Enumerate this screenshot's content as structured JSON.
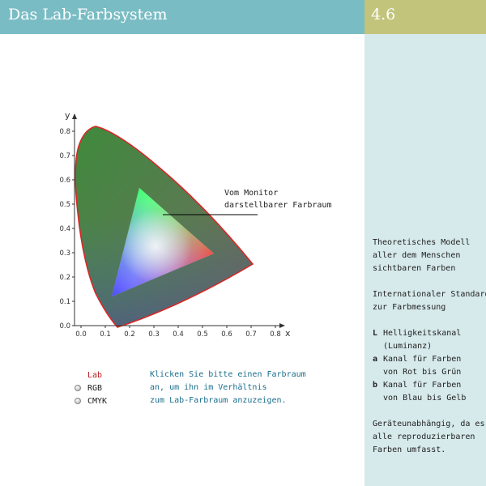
{
  "header": {
    "title": "Das Lab-Farbsystem",
    "page_number": "4.6"
  },
  "colors": {
    "title_bar": "#79bcc4",
    "page_number_bar": "#c2c47b",
    "sidebar": "#d6e9eb",
    "gamut_outline": "#d82828",
    "instruction_text": "#1c6f8c"
  },
  "sidebar": {
    "model_lines": [
      "Theoretisches Modell",
      "aller dem Menschen",
      "sichtbaren Farben"
    ],
    "standard_lines": [
      "Internationaler Standard",
      "zur Farbmessung"
    ],
    "definitions": [
      {
        "key": "L",
        "lines": [
          "Helligkeitskanal",
          "(Luminanz)"
        ]
      },
      {
        "key": "a",
        "lines": [
          "Kanal für Farben",
          "von Rot bis Grün"
        ]
      },
      {
        "key": "b",
        "lines": [
          "Kanal für Farben",
          "von Blau bis Gelb"
        ]
      }
    ],
    "device_lines": [
      "Geräteunabhängig, da es",
      "alle reproduzierbaren",
      "Farben umfasst."
    ]
  },
  "diagram": {
    "annotation_lines": [
      "Vom Monitor",
      "darstellbarer Farbraum"
    ],
    "x_axis_label": "x",
    "y_axis_label": "y",
    "x_ticks": [
      "0.0",
      "0.1",
      "0.2",
      "0.3",
      "0.4",
      "0.5",
      "0.6",
      "0.7",
      "0.8"
    ],
    "y_ticks": [
      "0.0",
      "0.1",
      "0.2",
      "0.3",
      "0.4",
      "0.5",
      "0.6",
      "0.7",
      "0.8"
    ]
  },
  "color_spaces": {
    "options": [
      {
        "label": "Lab",
        "selected": true
      },
      {
        "label": "RGB",
        "selected": false
      },
      {
        "label": "CMYK",
        "selected": false
      }
    ],
    "instruction_lines": [
      "Klicken Sie bitte einen Farbraum",
      "an, um ihn im Verhältnis",
      "zum Lab-Farbraum anzuzeigen."
    ]
  }
}
